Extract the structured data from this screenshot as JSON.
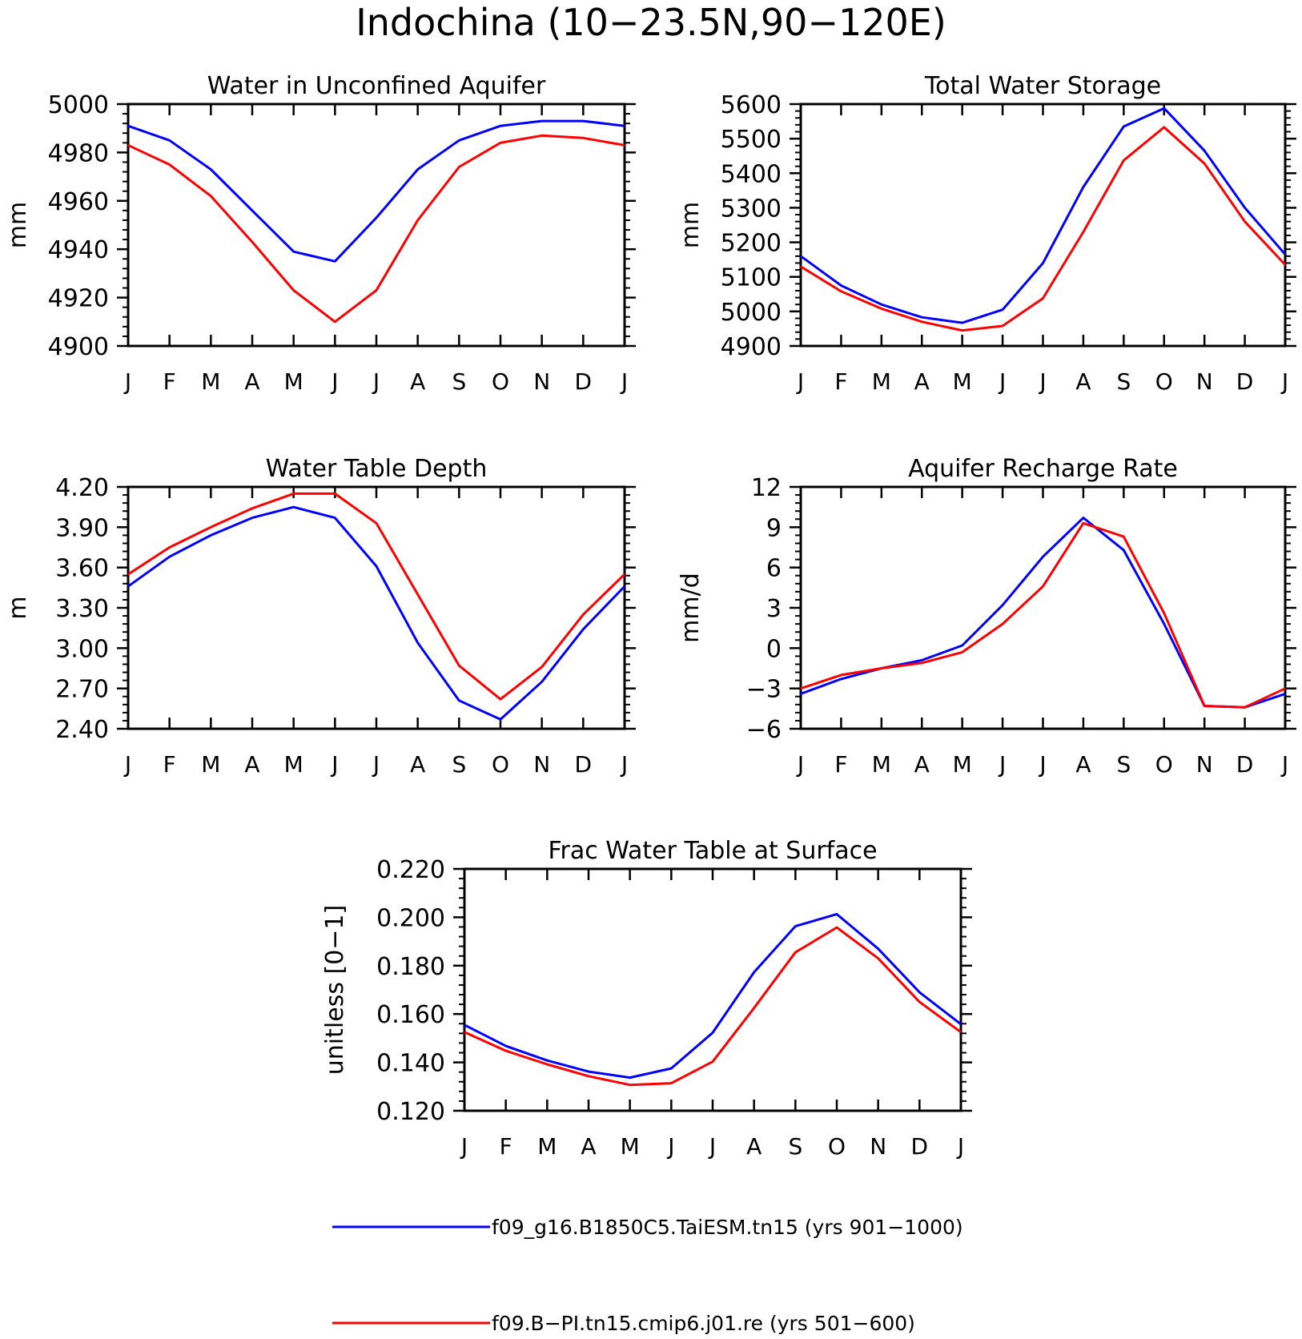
{
  "figure": {
    "title": "Indochina (10−23.5N,90−120E)"
  },
  "colors": {
    "run1": "#0000ff",
    "run2": "#ff0000",
    "axis": "#000000"
  },
  "legend": {
    "position": "bottom-center",
    "entries": [
      {
        "label": "f09_g16.B1850C5.TaiESM.tn15 (yrs 901−1000)",
        "color": "#0000ff"
      },
      {
        "label": "f09.B−PI.tn15.cmip6.j01.re (yrs 501−600)",
        "color": "#ff0000"
      }
    ]
  },
  "chart_data": [
    {
      "id": "aquifer",
      "type": "line",
      "title": "Water in Unconfined Aquifer",
      "xlabel": "",
      "ylabel": "mm",
      "categories": [
        "J",
        "F",
        "M",
        "A",
        "M",
        "J",
        "J",
        "A",
        "S",
        "O",
        "N",
        "D",
        "J"
      ],
      "ylim": [
        4900,
        5000
      ],
      "yticks": [
        "4900",
        "4920",
        "4940",
        "4960",
        "4980",
        "5000"
      ],
      "grid": false,
      "series": [
        {
          "color": "#0000ff",
          "values": [
            4991,
            4985,
            4973,
            4956,
            4939,
            4935,
            4953,
            4973,
            4985,
            4991,
            4993,
            4993,
            4991
          ]
        },
        {
          "color": "#ff0000",
          "values": [
            4983,
            4975,
            4962,
            4943,
            4923,
            4910,
            4923,
            4952,
            4974,
            4984,
            4987,
            4986,
            4983
          ]
        }
      ]
    },
    {
      "id": "tws",
      "type": "line",
      "title": "Total Water Storage",
      "xlabel": "",
      "ylabel": "mm",
      "categories": [
        "J",
        "F",
        "M",
        "A",
        "M",
        "J",
        "J",
        "A",
        "S",
        "O",
        "N",
        "D",
        "J"
      ],
      "ylim": [
        4900,
        5600
      ],
      "yticks": [
        "4900",
        "5000",
        "5100",
        "5200",
        "5300",
        "5400",
        "5500",
        "5600"
      ],
      "grid": false,
      "series": [
        {
          "color": "#0000ff",
          "values": [
            5160,
            5075,
            5020,
            4983,
            4967,
            5005,
            5140,
            5360,
            5535,
            5588,
            5465,
            5300,
            5165
          ]
        },
        {
          "color": "#ff0000",
          "values": [
            5130,
            5058,
            5008,
            4970,
            4945,
            4958,
            5038,
            5230,
            5437,
            5533,
            5428,
            5260,
            5135
          ]
        }
      ]
    },
    {
      "id": "wtd",
      "type": "line",
      "title": "Water Table Depth",
      "xlabel": "",
      "ylabel": "m",
      "categories": [
        "J",
        "F",
        "M",
        "A",
        "M",
        "J",
        "J",
        "A",
        "S",
        "O",
        "N",
        "D",
        "J"
      ],
      "ylim": [
        2.4,
        4.2
      ],
      "yticks": [
        "2.40",
        "2.70",
        "3.00",
        "3.30",
        "3.60",
        "3.90",
        "4.20"
      ],
      "grid": false,
      "series": [
        {
          "color": "#0000ff",
          "values": [
            3.46,
            3.68,
            3.84,
            3.97,
            4.05,
            3.97,
            3.61,
            3.04,
            2.61,
            2.47,
            2.75,
            3.14,
            3.46
          ]
        },
        {
          "color": "#ff0000",
          "values": [
            3.55,
            3.75,
            3.9,
            4.04,
            4.15,
            4.15,
            3.93,
            3.4,
            2.87,
            2.62,
            2.86,
            3.25,
            3.55
          ]
        }
      ]
    },
    {
      "id": "recharge",
      "type": "line",
      "title": "Aquifer Recharge Rate",
      "xlabel": "",
      "ylabel": "mm/d",
      "categories": [
        "J",
        "F",
        "M",
        "A",
        "M",
        "J",
        "J",
        "A",
        "S",
        "O",
        "N",
        "D",
        "J"
      ],
      "ylim": [
        -6,
        12
      ],
      "yticks": [
        "−6",
        "−3",
        "0",
        "3",
        "6",
        "9",
        "12"
      ],
      "grid": false,
      "series": [
        {
          "color": "#0000ff",
          "values": [
            -3.4,
            -2.3,
            -1.5,
            -0.9,
            0.2,
            3.2,
            6.8,
            9.7,
            7.3,
            1.8,
            -4.3,
            -4.4,
            -3.4
          ]
        },
        {
          "color": "#ff0000",
          "values": [
            -3.0,
            -2.0,
            -1.5,
            -1.1,
            -0.3,
            1.8,
            4.6,
            9.3,
            8.3,
            2.6,
            -4.3,
            -4.4,
            -3.0
          ]
        }
      ]
    },
    {
      "id": "frac",
      "type": "line",
      "title": "Frac Water Table at Surface",
      "xlabel": "",
      "ylabel": "unitless [0−1]",
      "categories": [
        "J",
        "F",
        "M",
        "A",
        "M",
        "J",
        "J",
        "A",
        "S",
        "O",
        "N",
        "D",
        "J"
      ],
      "ylim": [
        0.12,
        0.22
      ],
      "yticks": [
        "0.120",
        "0.140",
        "0.160",
        "0.180",
        "0.200",
        "0.220"
      ],
      "grid": false,
      "series": [
        {
          "color": "#0000ff",
          "values": [
            0.1555,
            0.1468,
            0.1408,
            0.1362,
            0.1337,
            0.1375,
            0.1523,
            0.1773,
            0.1963,
            0.2013,
            0.187,
            0.169,
            0.1558
          ]
        },
        {
          "color": "#ff0000",
          "values": [
            0.1525,
            0.1448,
            0.1392,
            0.1343,
            0.1307,
            0.1314,
            0.1403,
            0.1625,
            0.1855,
            0.1958,
            0.183,
            0.165,
            0.1525
          ]
        }
      ]
    }
  ]
}
